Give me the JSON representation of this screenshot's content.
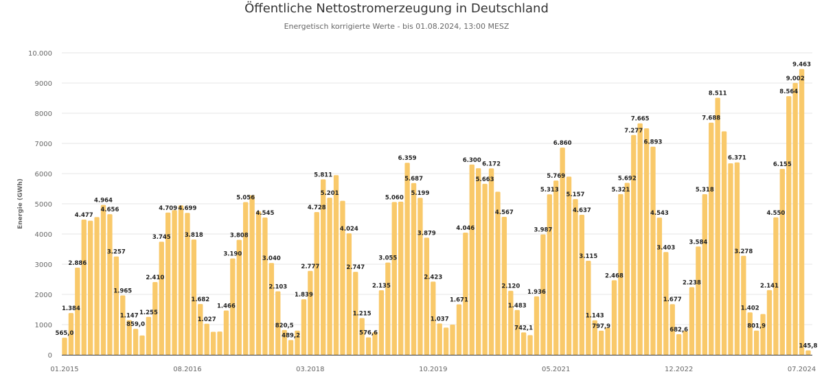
{
  "chart_data": {
    "type": "bar",
    "title": "Öffentliche Nettostromerzeugung in Deutschland",
    "subtitle": "Energetisch korrigierte Werte - bis 01.08.2024, 13:00 MESZ",
    "xlabel": "",
    "ylabel": "Energie (GWh)",
    "ylim": [
      0,
      10000
    ],
    "yticks": [
      {
        "value": 0,
        "label": "0"
      },
      {
        "value": 1000,
        "label": "1000"
      },
      {
        "value": 2000,
        "label": "2000"
      },
      {
        "value": 3000,
        "label": "3000"
      },
      {
        "value": 4000,
        "label": "4000"
      },
      {
        "value": 5000,
        "label": "5000"
      },
      {
        "value": 6000,
        "label": "6000"
      },
      {
        "value": 7000,
        "label": "7000"
      },
      {
        "value": 8000,
        "label": "8000"
      },
      {
        "value": 9000,
        "label": "9000"
      },
      {
        "value": 10000,
        "label": "10.000"
      }
    ],
    "xticks": [
      {
        "index": 0,
        "label": "01.2015"
      },
      {
        "index": 19,
        "label": "08.2016"
      },
      {
        "index": 38,
        "label": "03.2018"
      },
      {
        "index": 57,
        "label": "10.2019"
      },
      {
        "index": 76,
        "label": "05.2021"
      },
      {
        "index": 95,
        "label": "12.2022"
      },
      {
        "index": 114,
        "label": "07.2024"
      }
    ],
    "grid": true,
    "legend": "none",
    "bar_color": "#f9c96a",
    "start_month": "01.2015",
    "end_month": "08.2024",
    "values": [
      565,
      1384,
      2886,
      4477,
      4440,
      4560,
      4964,
      4656,
      3257,
      1965,
      1147,
      859,
      640,
      1255,
      2410,
      3745,
      4709,
      4790,
      4950,
      4699,
      3818,
      1682,
      1027,
      760,
      770,
      1466,
      3190,
      3808,
      5056,
      5280,
      4750,
      4545,
      3040,
      2103,
      820.5,
      489.2,
      800,
      1839,
      2777,
      4728,
      5811,
      5201,
      5950,
      5100,
      4024,
      2747,
      1215,
      576.6,
      750,
      2135,
      3055,
      5060,
      5070,
      6359,
      5687,
      5199,
      3879,
      2423,
      1037,
      900,
      1000,
      1671,
      4046,
      6300,
      6180,
      5663,
      6172,
      5400,
      4567,
      2120,
      1483,
      742.1,
      650,
      1936,
      3987,
      5313,
      5769,
      6860,
      5900,
      5157,
      4637,
      3115,
      1143,
      797.9,
      900,
      2468,
      5321,
      5692,
      7277,
      7665,
      7500,
      6893,
      4543,
      3403,
      1677,
      682.6,
      790,
      2238,
      3584,
      5318,
      7688,
      8511,
      7400,
      6340,
      6371,
      3278,
      1402,
      801.9,
      1350,
      2141,
      4550,
      6155,
      8564,
      9002,
      9463,
      145.8
    ],
    "data_labels": [
      "565,0",
      "1.384",
      "2.886",
      "4.477",
      null,
      null,
      "4.964",
      "4.656",
      "3.257",
      "1.965",
      "1.147",
      "859,0",
      null,
      "1.255",
      "2.410",
      "3.745",
      "4.709",
      null,
      null,
      "4.699",
      "3.818",
      "1.682",
      "1.027",
      null,
      null,
      "1.466",
      "3.190",
      "3.808",
      "5.056",
      null,
      null,
      "4.545",
      "3.040",
      "2.103",
      "820,5",
      "489,2",
      null,
      "1.839",
      "2.777",
      "4.728",
      "5.811",
      "5.201",
      null,
      null,
      "4.024",
      "2.747",
      "1.215",
      "576,6",
      null,
      "2.135",
      "3.055",
      "5.060",
      null,
      "6.359",
      "5.687",
      "5.199",
      "3.879",
      "2.423",
      "1.037",
      null,
      null,
      "1.671",
      "4.046",
      "6.300",
      null,
      "5.663",
      "6.172",
      null,
      "4.567",
      "2.120",
      "1.483",
      "742,1",
      null,
      "1.936",
      "3.987",
      "5.313",
      "5.769",
      "6.860",
      null,
      "5.157",
      "4.637",
      "3.115",
      "1.143",
      "797,9",
      null,
      "2.468",
      "5.321",
      "5.692",
      "7.277",
      "7.665",
      null,
      "6.893",
      "4.543",
      "3.403",
      "1.677",
      "682,6",
      null,
      "2.238",
      "3.584",
      "5.318",
      "7.688",
      "8.511",
      null,
      null,
      "6.371",
      "3.278",
      "1.402",
      "801,9",
      null,
      "2.141",
      "4.550",
      "6.155",
      "8.564",
      "9.002",
      "9.463",
      "145,8"
    ]
  }
}
